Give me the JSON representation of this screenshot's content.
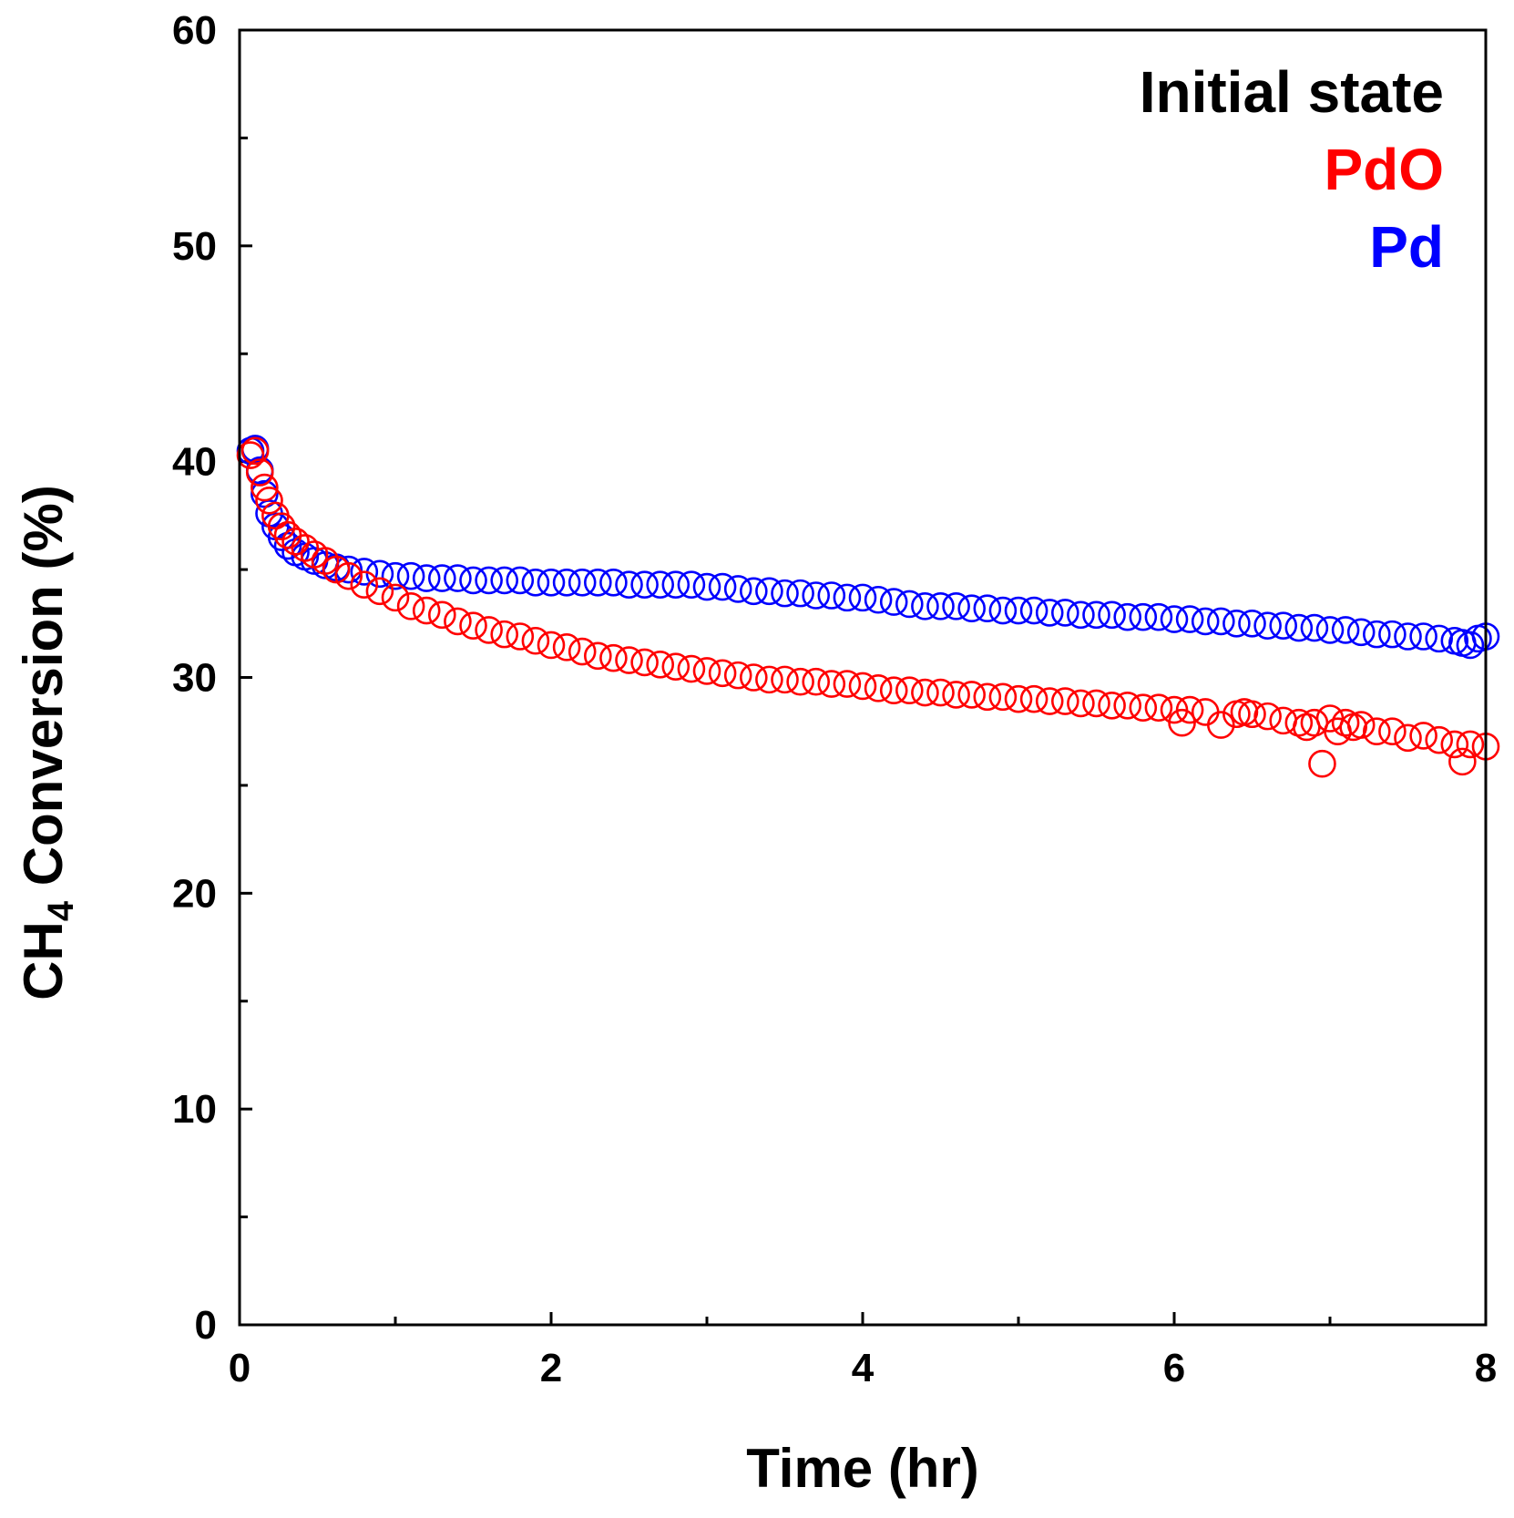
{
  "chart_data": {
    "type": "scatter",
    "title": "",
    "xlabel": "Time (hr)",
    "ylabel_main": "CH",
    "ylabel_subscript": "4",
    "ylabel_rest": " Conversion (%)",
    "xlim": [
      0,
      8
    ],
    "ylim": [
      0,
      60
    ],
    "x_ticks": [
      0,
      2,
      4,
      6,
      8
    ],
    "x_tick_labels": [
      "0",
      "2",
      "4",
      "6",
      "8"
    ],
    "x_minor_step": 1,
    "y_ticks": [
      0,
      10,
      20,
      30,
      40,
      50,
      60
    ],
    "y_tick_labels": [
      "0",
      "10",
      "20",
      "30",
      "40",
      "50",
      "60"
    ],
    "y_minor_step": 5,
    "grid": false,
    "legend_title": "Initial state",
    "legend_placement": "top-right",
    "series": [
      {
        "name": "PdO",
        "color": "#ff0000",
        "marker": "open-circle",
        "x": [
          0.07,
          0.1,
          0.13,
          0.16,
          0.19,
          0.23,
          0.27,
          0.31,
          0.36,
          0.42,
          0.48,
          0.55,
          0.62,
          0.7,
          0.8,
          0.9,
          1.0,
          1.1,
          1.2,
          1.3,
          1.4,
          1.5,
          1.6,
          1.7,
          1.8,
          1.9,
          2.0,
          2.1,
          2.2,
          2.3,
          2.4,
          2.5,
          2.6,
          2.7,
          2.8,
          2.9,
          3.0,
          3.1,
          3.2,
          3.3,
          3.4,
          3.5,
          3.6,
          3.7,
          3.8,
          3.9,
          4.0,
          4.1,
          4.2,
          4.3,
          4.4,
          4.5,
          4.6,
          4.7,
          4.8,
          4.9,
          5.0,
          5.1,
          5.2,
          5.3,
          5.4,
          5.5,
          5.6,
          5.7,
          5.8,
          5.9,
          6.0,
          6.05,
          6.1,
          6.2,
          6.3,
          6.4,
          6.45,
          6.5,
          6.6,
          6.7,
          6.8,
          6.85,
          6.9,
          6.95,
          7.0,
          7.05,
          7.1,
          7.15,
          7.2,
          7.3,
          7.4,
          7.5,
          7.6,
          7.7,
          7.8,
          7.85,
          7.9,
          8.0
        ],
        "y": [
          40.3,
          40.5,
          39.5,
          38.8,
          38.2,
          37.5,
          37.0,
          36.6,
          36.3,
          36.0,
          35.7,
          35.4,
          35.0,
          34.7,
          34.3,
          34.0,
          33.7,
          33.3,
          33.1,
          32.9,
          32.6,
          32.4,
          32.2,
          32.0,
          31.9,
          31.7,
          31.5,
          31.4,
          31.2,
          31.0,
          30.9,
          30.8,
          30.7,
          30.6,
          30.5,
          30.4,
          30.3,
          30.2,
          30.1,
          30.0,
          29.9,
          29.9,
          29.8,
          29.8,
          29.7,
          29.7,
          29.6,
          29.5,
          29.4,
          29.4,
          29.3,
          29.3,
          29.2,
          29.2,
          29.1,
          29.1,
          29.0,
          29.0,
          28.9,
          28.9,
          28.8,
          28.8,
          28.7,
          28.7,
          28.6,
          28.6,
          28.5,
          27.9,
          28.5,
          28.4,
          27.8,
          28.3,
          28.4,
          28.3,
          28.2,
          28.0,
          27.9,
          27.7,
          27.9,
          26.0,
          28.1,
          27.5,
          27.9,
          27.7,
          27.8,
          27.5,
          27.5,
          27.2,
          27.3,
          27.1,
          26.9,
          26.1,
          26.9,
          26.8
        ]
      },
      {
        "name": "Pd",
        "color": "#0000ff",
        "marker": "open-circle",
        "x": [
          0.07,
          0.1,
          0.13,
          0.16,
          0.19,
          0.23,
          0.27,
          0.31,
          0.36,
          0.42,
          0.48,
          0.55,
          0.62,
          0.7,
          0.8,
          0.9,
          1.0,
          1.1,
          1.2,
          1.3,
          1.4,
          1.5,
          1.6,
          1.7,
          1.8,
          1.9,
          2.0,
          2.1,
          2.2,
          2.3,
          2.4,
          2.5,
          2.6,
          2.7,
          2.8,
          2.9,
          3.0,
          3.1,
          3.2,
          3.3,
          3.4,
          3.5,
          3.6,
          3.7,
          3.8,
          3.9,
          4.0,
          4.1,
          4.2,
          4.3,
          4.4,
          4.5,
          4.6,
          4.7,
          4.8,
          4.9,
          5.0,
          5.1,
          5.2,
          5.3,
          5.4,
          5.5,
          5.6,
          5.7,
          5.8,
          5.9,
          6.0,
          6.1,
          6.2,
          6.3,
          6.4,
          6.5,
          6.6,
          6.7,
          6.8,
          6.9,
          7.0,
          7.1,
          7.2,
          7.3,
          7.4,
          7.5,
          7.6,
          7.7,
          7.8,
          7.85,
          7.9,
          7.95,
          8.0
        ],
        "y": [
          40.5,
          40.6,
          39.6,
          38.5,
          37.6,
          37.0,
          36.5,
          36.1,
          35.8,
          35.6,
          35.4,
          35.2,
          35.1,
          35.0,
          34.9,
          34.8,
          34.7,
          34.7,
          34.6,
          34.6,
          34.6,
          34.5,
          34.5,
          34.5,
          34.5,
          34.4,
          34.4,
          34.4,
          34.4,
          34.4,
          34.4,
          34.3,
          34.3,
          34.3,
          34.3,
          34.3,
          34.2,
          34.2,
          34.1,
          34.0,
          34.0,
          33.9,
          33.9,
          33.8,
          33.8,
          33.7,
          33.7,
          33.6,
          33.5,
          33.4,
          33.3,
          33.3,
          33.3,
          33.2,
          33.2,
          33.1,
          33.1,
          33.1,
          33.0,
          33.0,
          32.9,
          32.9,
          32.9,
          32.8,
          32.8,
          32.8,
          32.7,
          32.7,
          32.6,
          32.6,
          32.5,
          32.5,
          32.4,
          32.4,
          32.3,
          32.3,
          32.2,
          32.2,
          32.1,
          32.0,
          32.0,
          31.9,
          31.9,
          31.8,
          31.7,
          31.6,
          31.5,
          31.8,
          31.9
        ]
      }
    ]
  }
}
